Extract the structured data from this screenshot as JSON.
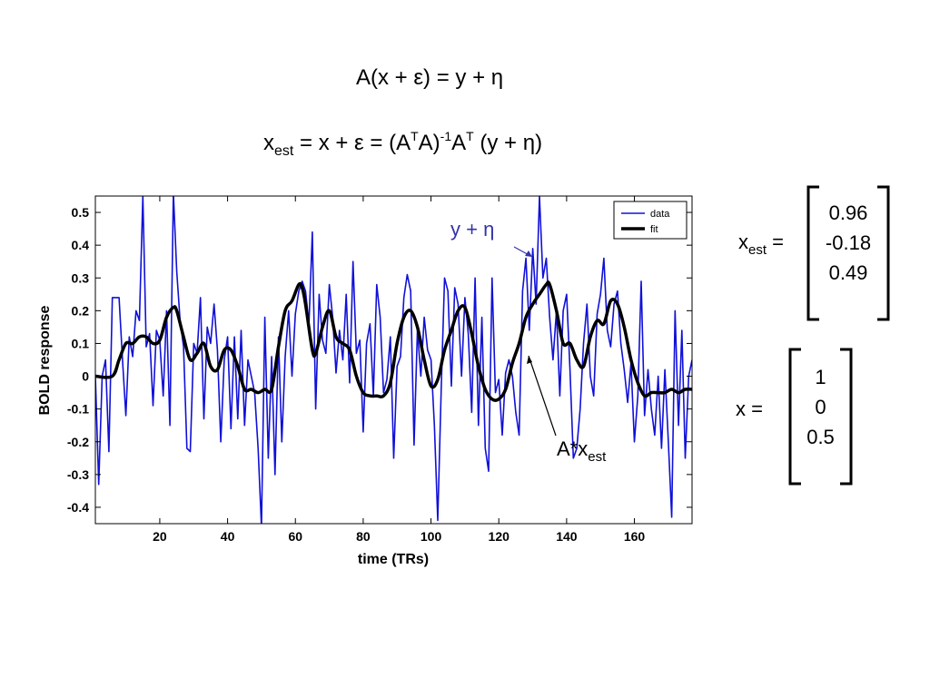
{
  "equations": {
    "eq1": "A(x + ε) = y + η",
    "eq2_x": "x",
    "eq2_sub": "est",
    "eq2_mid": " = x + ε = (A",
    "eq2_sup1": "T",
    "eq2_mid2": "A)",
    "eq2_sup2": "-1",
    "eq2_mid3": "A",
    "eq2_sup3": "T",
    "eq2_end": " (y + η)"
  },
  "annotations": {
    "y_eta": "y + η",
    "ax_main": "A*x",
    "ax_sub": "est"
  },
  "matrices": {
    "xest": {
      "label_main": "x",
      "label_sub": "est",
      "label_end": " =",
      "values": [
        "0.96",
        "-0.18",
        "0.49"
      ]
    },
    "x": {
      "label": "x =",
      "values": [
        "1",
        "0",
        "0.5"
      ]
    }
  },
  "colors": {
    "data": "#1010d8",
    "fit": "#000000",
    "annotation": "#3333aa"
  },
  "chart_data": {
    "type": "line",
    "xlabel": "time (TRs)",
    "ylabel": "BOLD response",
    "xlim": [
      1,
      177
    ],
    "ylim": [
      -0.45,
      0.55
    ],
    "xticks": [
      20,
      40,
      60,
      80,
      100,
      120,
      140,
      160
    ],
    "yticks": [
      -0.4,
      -0.3,
      -0.2,
      -0.1,
      0,
      0.1,
      0.2,
      0.3,
      0.4,
      0.5
    ],
    "ytick_labels": [
      "-0.4",
      "-0.3",
      "-0.2",
      "-0.1",
      "0",
      "0.1",
      "0.2",
      "0.3",
      "0.4",
      "0.5"
    ],
    "legend": {
      "placement": "top-right",
      "entries": [
        "data",
        "fit"
      ]
    },
    "series": [
      {
        "name": "data",
        "x_start": 1,
        "values": [
          0.0,
          -0.33,
          0.0,
          0.05,
          -0.23,
          0.24,
          0.24,
          0.24,
          0.05,
          -0.12,
          0.12,
          0.06,
          0.2,
          0.17,
          0.55,
          0.09,
          0.13,
          -0.09,
          0.14,
          0.11,
          -0.06,
          0.2,
          -0.15,
          0.56,
          0.32,
          0.17,
          0.09,
          -0.22,
          -0.23,
          0.1,
          0.07,
          0.24,
          -0.13,
          0.15,
          0.1,
          0.22,
          0.08,
          -0.2,
          0.05,
          0.12,
          -0.16,
          0.12,
          -0.13,
          0.14,
          -0.15,
          0.05,
          0.0,
          -0.05,
          -0.22,
          -0.46,
          0.18,
          -0.25,
          0.06,
          -0.3,
          0.12,
          -0.2,
          0.06,
          0.2,
          0.0,
          0.19,
          0.26,
          0.29,
          0.26,
          0.16,
          0.44,
          -0.1,
          0.25,
          0.11,
          0.07,
          0.28,
          0.18,
          0.01,
          0.14,
          0.05,
          0.25,
          -0.02,
          0.35,
          0.07,
          0.11,
          -0.17,
          0.1,
          0.16,
          -0.06,
          0.28,
          0.18,
          -0.05,
          -0.01,
          0.12,
          -0.25,
          0.03,
          0.06,
          0.24,
          0.31,
          0.26,
          -0.21,
          0.14,
          0.0,
          0.18,
          0.08,
          0.05,
          -0.15,
          -0.44,
          -0.04,
          0.3,
          0.26,
          -0.03,
          0.27,
          0.22,
          0.0,
          0.24,
          0.13,
          -0.11,
          0.3,
          -0.15,
          0.18,
          -0.22,
          -0.29,
          0.3,
          -0.05,
          -0.01,
          -0.18,
          0.01,
          0.05,
          0.0,
          -0.11,
          -0.18,
          0.26,
          0.36,
          0.14,
          0.39,
          0.22,
          0.55,
          0.3,
          0.36,
          0.18,
          0.05,
          0.2,
          -0.06,
          0.2,
          0.25,
          0.02,
          -0.25,
          -0.22,
          -0.1,
          0.1,
          0.22,
          0.0,
          -0.06,
          0.19,
          0.25,
          0.36,
          0.14,
          0.09,
          0.22,
          0.26,
          0.1,
          0.02,
          -0.08,
          0.04,
          -0.2,
          -0.06,
          0.29,
          -0.12,
          0.02,
          -0.1,
          -0.18,
          0.0,
          -0.22,
          0.02,
          -0.2,
          -0.43,
          0.2,
          -0.15,
          0.14,
          -0.25,
          0.0,
          0.05
        ]
      },
      {
        "name": "fit",
        "x": [
          1,
          6,
          8,
          10,
          12,
          14,
          16,
          18,
          20,
          22,
          24,
          25,
          27,
          29,
          31,
          33,
          35,
          37,
          39,
          41,
          43,
          45,
          47,
          49,
          51,
          53,
          55,
          57,
          59,
          61,
          62,
          63,
          65,
          66,
          68,
          70,
          72,
          74,
          76,
          78,
          80,
          82,
          84,
          86,
          88,
          90,
          92,
          94,
          96,
          98,
          100,
          102,
          104,
          106,
          108,
          110,
          112,
          114,
          116,
          118,
          120,
          122,
          124,
          126,
          128,
          130,
          132,
          134,
          135,
          137,
          139,
          141,
          143,
          145,
          147,
          149,
          151,
          153,
          155,
          157,
          159,
          161,
          163,
          165,
          167,
          169,
          171,
          173,
          175,
          177
        ],
        "y": [
          0.0,
          0.0,
          0.05,
          0.1,
          0.1,
          0.12,
          0.12,
          0.1,
          0.11,
          0.18,
          0.21,
          0.2,
          0.12,
          0.05,
          0.07,
          0.1,
          0.03,
          0.02,
          0.08,
          0.08,
          0.03,
          -0.04,
          -0.04,
          -0.05,
          -0.04,
          -0.04,
          0.09,
          0.2,
          0.23,
          0.28,
          0.27,
          0.22,
          0.08,
          0.07,
          0.15,
          0.2,
          0.12,
          0.1,
          0.08,
          0.0,
          -0.05,
          -0.06,
          -0.06,
          -0.06,
          -0.02,
          0.1,
          0.18,
          0.2,
          0.15,
          0.05,
          -0.03,
          -0.01,
          0.08,
          0.14,
          0.2,
          0.21,
          0.13,
          0.03,
          -0.04,
          -0.07,
          -0.07,
          -0.04,
          0.04,
          0.1,
          0.18,
          0.22,
          0.25,
          0.28,
          0.28,
          0.2,
          0.1,
          0.1,
          0.05,
          0.03,
          0.12,
          0.17,
          0.16,
          0.23,
          0.22,
          0.15,
          0.05,
          -0.02,
          -0.06,
          -0.05,
          -0.05,
          -0.05,
          -0.04,
          -0.05,
          -0.04,
          -0.04
        ]
      }
    ]
  }
}
